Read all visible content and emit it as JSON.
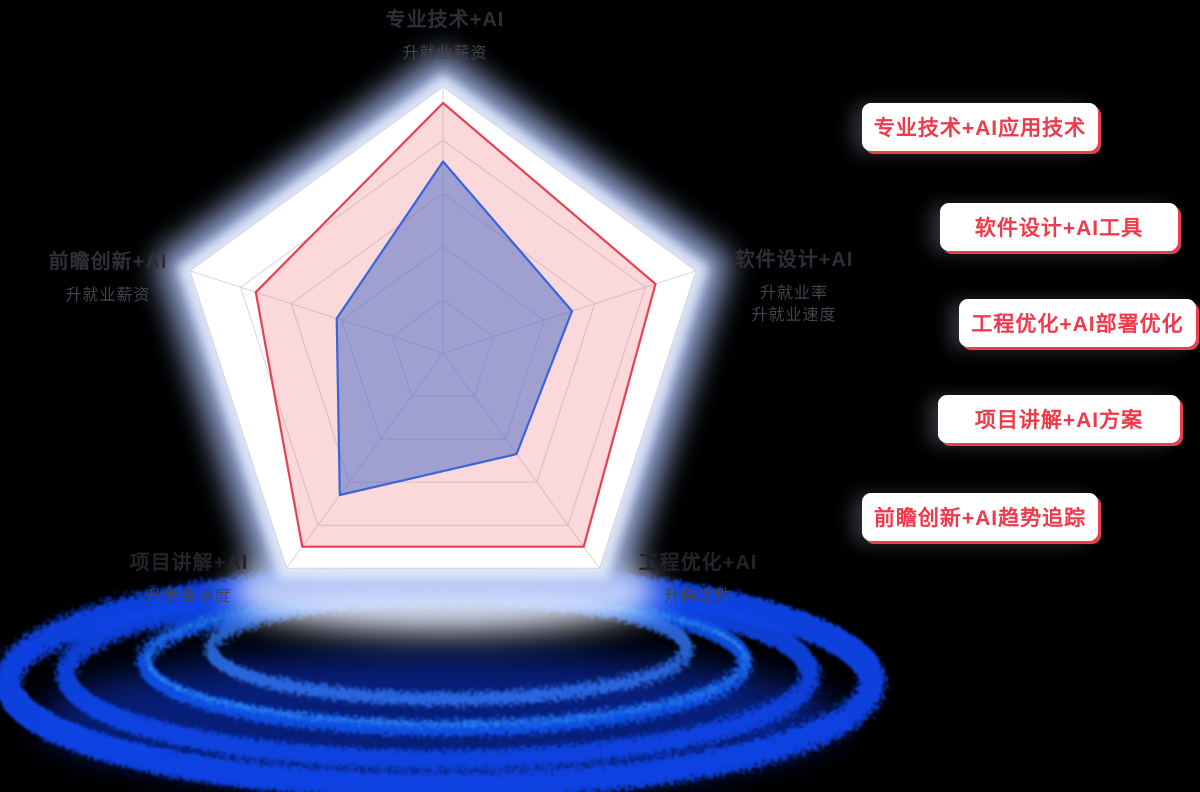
{
  "page": {
    "background": "#000000"
  },
  "chart_data": {
    "type": "radar",
    "levels": 5,
    "max": 100,
    "grid": true,
    "legend_position": "none",
    "indicators": [
      {
        "axis": "top",
        "name": "专业技术+AI",
        "sub": [
          "升就业薪资"
        ]
      },
      {
        "axis": "right",
        "name": "软件设计+AI",
        "sub": [
          "升就业率",
          "升就业速度"
        ]
      },
      {
        "axis": "bottom-right",
        "name": "工程优化+AI",
        "sub": [
          "升稳定性"
        ]
      },
      {
        "axis": "bottom-left",
        "name": "项目讲解+AI",
        "sub": [
          "升就业速度"
        ]
      },
      {
        "axis": "left",
        "name": "前瞻创新+AI",
        "sub": [
          "升就业薪资"
        ]
      }
    ],
    "series": [
      {
        "stroke": "#e9404f",
        "fill": "rgba(237,80,92,0.22)",
        "values": [
          94,
          84,
          90,
          90,
          74
        ]
      },
      {
        "stroke": "#3a64da",
        "fill": "rgba(84,112,198,0.55)",
        "values": [
          72,
          51,
          47,
          66,
          42
        ]
      }
    ]
  },
  "badges": [
    {
      "label": "专业技术+AI应用技术"
    },
    {
      "label": "软件设计+AI工具"
    },
    {
      "label": "工程优化+AI部署优化"
    },
    {
      "label": "项目讲解+AI方案"
    },
    {
      "label": "前瞻创新+AI趋势追踪"
    }
  ],
  "colors": {
    "badge_bg": "#ffffff",
    "badge_text": "#ee3a4b",
    "axis_label": "#2e2f38",
    "axis_sublabel": "#43444c",
    "grid": "#d5d6db",
    "panel": "#ffffff",
    "panel_glow": "#a9bdf3",
    "platform_blue": "#0a45ea"
  }
}
